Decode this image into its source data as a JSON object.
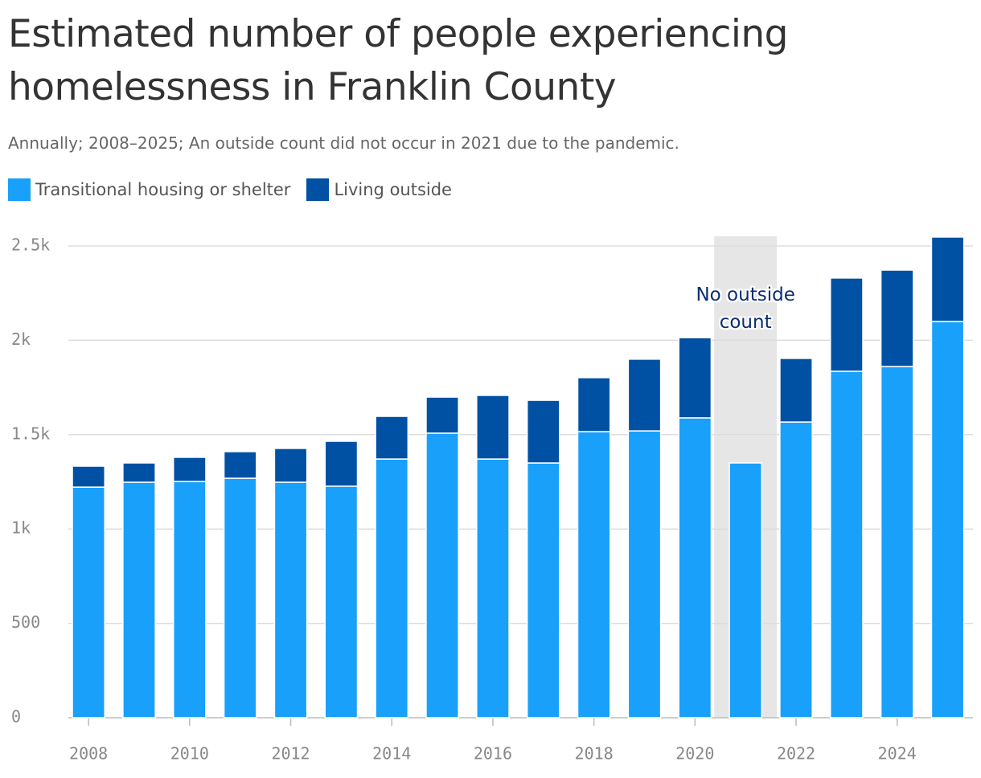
{
  "chart_data": {
    "type": "stacked_bar",
    "title": "Estimated number of people experiencing homelessness in Franklin County",
    "subtitle": "Annually; 2008–2025; An outside count did not occur in 2021 due to the pandemic.",
    "x": [
      2008,
      2009,
      2010,
      2011,
      2012,
      2013,
      2014,
      2015,
      2016,
      2017,
      2018,
      2019,
      2020,
      2021,
      2022,
      2023,
      2024,
      2025
    ],
    "series": [
      {
        "name": "Transitional housing or shelter",
        "color": "#18a0fb",
        "values": [
          1222,
          1248,
          1252,
          1269,
          1248,
          1227,
          1371,
          1508,
          1371,
          1350,
          1516,
          1520,
          1589,
          1350,
          1567,
          1836,
          1861,
          2100
        ]
      },
      {
        "name": "Living outside",
        "color": "#0050a3",
        "values": [
          111,
          102,
          128,
          141,
          179,
          238,
          226,
          191,
          337,
          332,
          286,
          380,
          425,
          null,
          337,
          494,
          511,
          447
        ]
      }
    ],
    "xlim": [
      2007.6,
      2025.5
    ],
    "xticks": [
      2008,
      2010,
      2012,
      2014,
      2016,
      2018,
      2020,
      2022,
      2024
    ],
    "ylim": [
      0,
      2500
    ],
    "yticks": [
      0,
      500,
      {
        "value": 1000,
        "label": "1k"
      },
      {
        "value": 1500,
        "label": "1.5k"
      },
      {
        "value": 2000,
        "label": "2k"
      },
      {
        "value": 2500,
        "label": "2.5k"
      }
    ],
    "grid": true,
    "annotation": {
      "text": "No outside count",
      "x": 2021
    }
  }
}
